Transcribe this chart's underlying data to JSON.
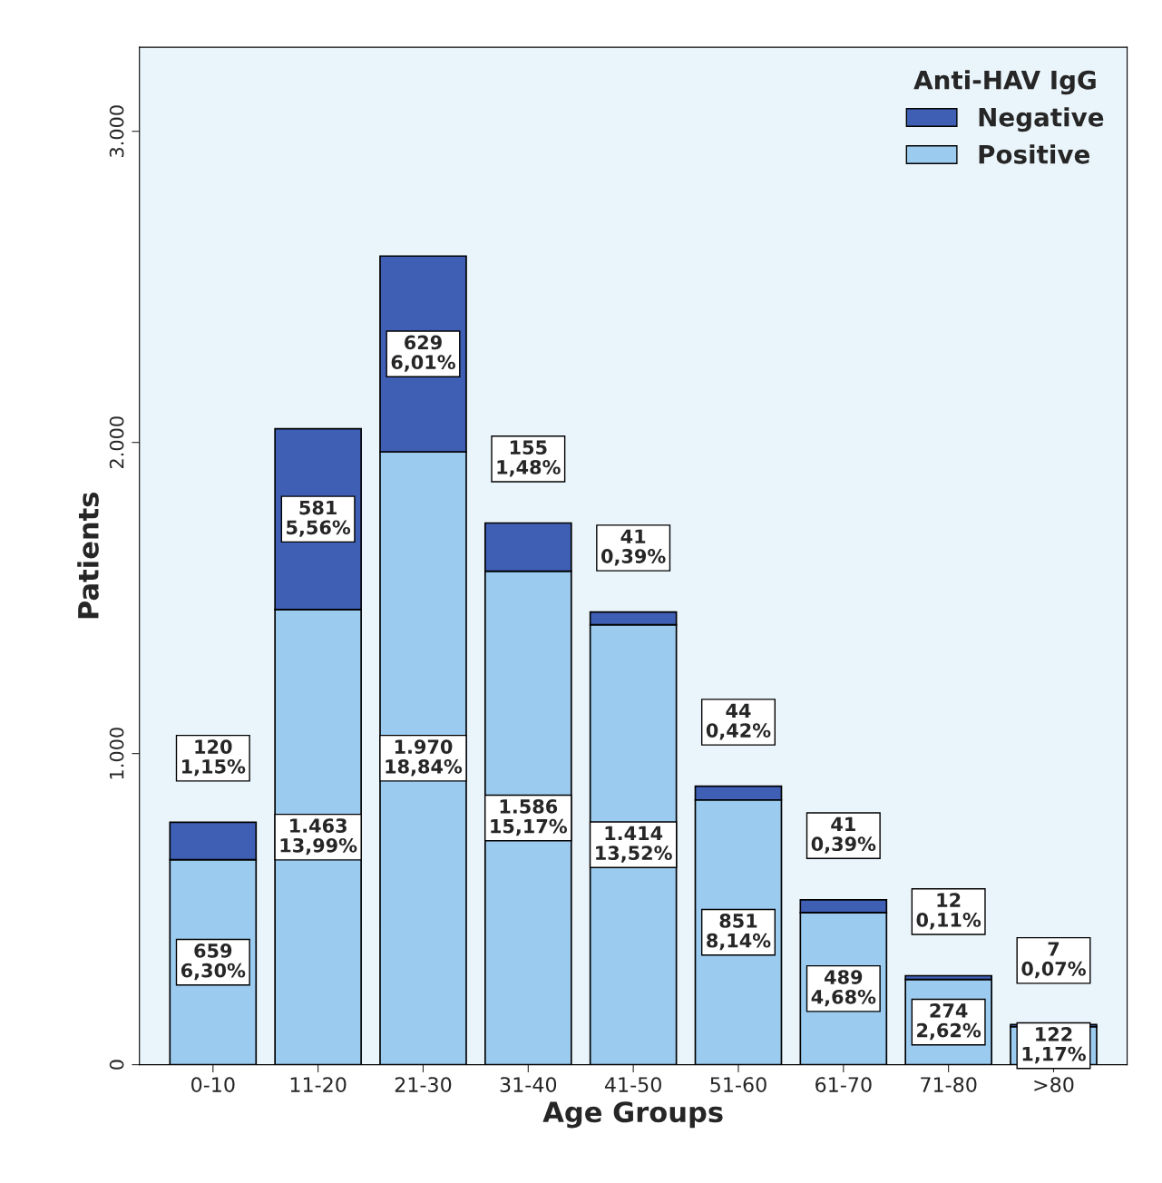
{
  "chart_data": {
    "type": "bar",
    "stacked": true,
    "xlabel": "Age Groups",
    "ylabel": "Patients",
    "legend_title": "Anti-HAV IgG",
    "legend": "top right",
    "grid": false,
    "categories": [
      "0-10",
      "11-20",
      "21-30",
      "31-40",
      "41-50",
      "51-60",
      "61-70",
      "71-80",
      ">80"
    ],
    "ylim": [
      0,
      3270
    ],
    "yticks": [
      0,
      {
        "value": 1000,
        "label": "1.000"
      },
      {
        "value": 2000,
        "label": "2.000"
      },
      {
        "value": 3000,
        "label": "3.000"
      }
    ],
    "series": [
      {
        "name": "Positive",
        "color": "#9ccbf0",
        "values": [
          659,
          1463,
          1970,
          1586,
          1414,
          851,
          489,
          274,
          122
        ],
        "value_labels": [
          "659\n6,30%",
          "1.463\n13,99%",
          "1.970\n18,84%",
          "1.586\n15,17%",
          "1.414\n13,52%",
          "851\n8,14%",
          "489\n4,68%",
          "274\n2,62%",
          "122\n1,17%"
        ]
      },
      {
        "name": "Negative",
        "color": "#3f5fb5",
        "values": [
          120,
          581,
          629,
          155,
          41,
          44,
          41,
          12,
          7
        ],
        "value_labels": [
          "120\n1,15%",
          "581\n5,56%",
          "629\n6,01%",
          "155\n1,48%",
          "41\n0,39%",
          "44\n0,42%",
          "41\n0,39%",
          "12\n0,11%",
          "7\n0,07%"
        ]
      }
    ]
  }
}
